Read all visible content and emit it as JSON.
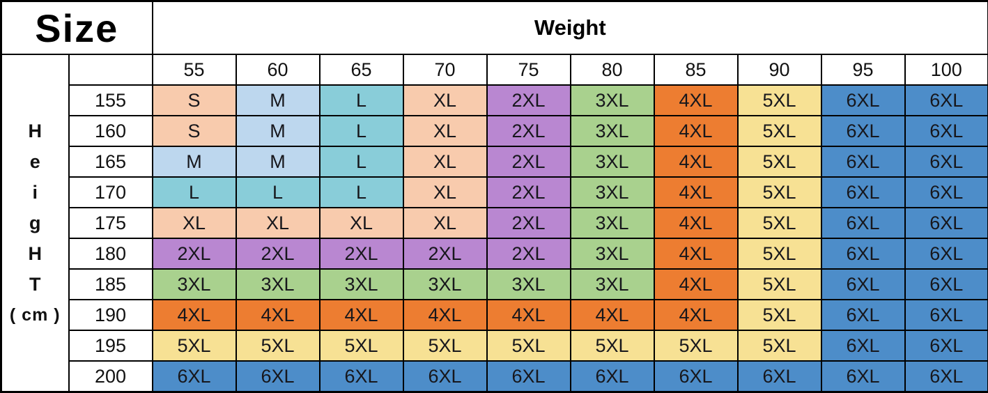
{
  "table": {
    "corner_title": "Size",
    "weight_header": "Weight",
    "weight_values": [
      "55",
      "60",
      "65",
      "70",
      "75",
      "80",
      "85",
      "90",
      "95",
      "100"
    ],
    "height_label_letters": [
      "H",
      "e",
      "i",
      "g",
      "H",
      "T",
      "( cm )"
    ],
    "rows": [
      {
        "height": "155",
        "sizes": [
          "S",
          "M",
          "L",
          "XL",
          "2XL",
          "3XL",
          "4XL",
          "5XL",
          "6XL",
          "6XL"
        ]
      },
      {
        "height": "160",
        "sizes": [
          "S",
          "M",
          "L",
          "XL",
          "2XL",
          "3XL",
          "4XL",
          "5XL",
          "6XL",
          "6XL"
        ]
      },
      {
        "height": "165",
        "sizes": [
          "M",
          "M",
          "L",
          "XL",
          "2XL",
          "3XL",
          "4XL",
          "5XL",
          "6XL",
          "6XL"
        ]
      },
      {
        "height": "170",
        "sizes": [
          "L",
          "L",
          "L",
          "XL",
          "2XL",
          "3XL",
          "4XL",
          "5XL",
          "6XL",
          "6XL"
        ]
      },
      {
        "height": "175",
        "sizes": [
          "XL",
          "XL",
          "XL",
          "XL",
          "2XL",
          "3XL",
          "4XL",
          "5XL",
          "6XL",
          "6XL"
        ]
      },
      {
        "height": "180",
        "sizes": [
          "2XL",
          "2XL",
          "2XL",
          "2XL",
          "2XL",
          "3XL",
          "4XL",
          "5XL",
          "6XL",
          "6XL"
        ]
      },
      {
        "height": "185",
        "sizes": [
          "3XL",
          "3XL",
          "3XL",
          "3XL",
          "3XL",
          "3XL",
          "4XL",
          "5XL",
          "6XL",
          "6XL"
        ]
      },
      {
        "height": "190",
        "sizes": [
          "4XL",
          "4XL",
          "4XL",
          "4XL",
          "4XL",
          "4XL",
          "4XL",
          "5XL",
          "6XL",
          "6XL"
        ]
      },
      {
        "height": "195",
        "sizes": [
          "5XL",
          "5XL",
          "5XL",
          "5XL",
          "5XL",
          "5XL",
          "5XL",
          "5XL",
          "6XL",
          "6XL"
        ]
      },
      {
        "height": "200",
        "sizes": [
          "6XL",
          "6XL",
          "6XL",
          "6XL",
          "6XL",
          "6XL",
          "6XL",
          "6XL",
          "6XL",
          "6XL"
        ]
      }
    ],
    "size_colors": {
      "S": "#F8CBAD",
      "M": "#BDD7EE",
      "L": "#89CDD9",
      "XL": "#F8CBAD",
      "2XL": "#B987D1",
      "3XL": "#A9D18E",
      "4XL": "#ED7D31",
      "5XL": "#F7E194",
      "6XL": "#4D8DC9"
    },
    "border_color": "#000000",
    "text_color": "#111111",
    "background_color": "#FFFFFF"
  },
  "chart_data": {
    "type": "table",
    "title": "Size",
    "xlabel": "Weight",
    "ylabel": "HeigHT ( cm )",
    "x_categories": [
      55,
      60,
      65,
      70,
      75,
      80,
      85,
      90,
      95,
      100
    ],
    "y_categories": [
      155,
      160,
      165,
      170,
      175,
      180,
      185,
      190,
      195,
      200
    ],
    "cells": [
      [
        "S",
        "M",
        "L",
        "XL",
        "2XL",
        "3XL",
        "4XL",
        "5XL",
        "6XL",
        "6XL"
      ],
      [
        "S",
        "M",
        "L",
        "XL",
        "2XL",
        "3XL",
        "4XL",
        "5XL",
        "6XL",
        "6XL"
      ],
      [
        "M",
        "M",
        "L",
        "XL",
        "2XL",
        "3XL",
        "4XL",
        "5XL",
        "6XL",
        "6XL"
      ],
      [
        "L",
        "L",
        "L",
        "XL",
        "2XL",
        "3XL",
        "4XL",
        "5XL",
        "6XL",
        "6XL"
      ],
      [
        "XL",
        "XL",
        "XL",
        "XL",
        "2XL",
        "3XL",
        "4XL",
        "5XL",
        "6XL",
        "6XL"
      ],
      [
        "2XL",
        "2XL",
        "2XL",
        "2XL",
        "2XL",
        "3XL",
        "4XL",
        "5XL",
        "6XL",
        "6XL"
      ],
      [
        "3XL",
        "3XL",
        "3XL",
        "3XL",
        "3XL",
        "3XL",
        "4XL",
        "5XL",
        "6XL",
        "6XL"
      ],
      [
        "4XL",
        "4XL",
        "4XL",
        "4XL",
        "4XL",
        "4XL",
        "4XL",
        "5XL",
        "6XL",
        "6XL"
      ],
      [
        "5XL",
        "5XL",
        "5XL",
        "5XL",
        "5XL",
        "5XL",
        "5XL",
        "5XL",
        "6XL",
        "6XL"
      ],
      [
        "6XL",
        "6XL",
        "6XL",
        "6XL",
        "6XL",
        "6XL",
        "6XL",
        "6XL",
        "6XL",
        "6XL"
      ]
    ],
    "legend": "cell color encodes garment size",
    "size_color_map": {
      "S": "#F8CBAD",
      "M": "#BDD7EE",
      "L": "#89CDD9",
      "XL": "#F8CBAD",
      "2XL": "#B987D1",
      "3XL": "#A9D18E",
      "4XL": "#ED7D31",
      "5XL": "#F7E194",
      "6XL": "#4D8DC9"
    }
  }
}
